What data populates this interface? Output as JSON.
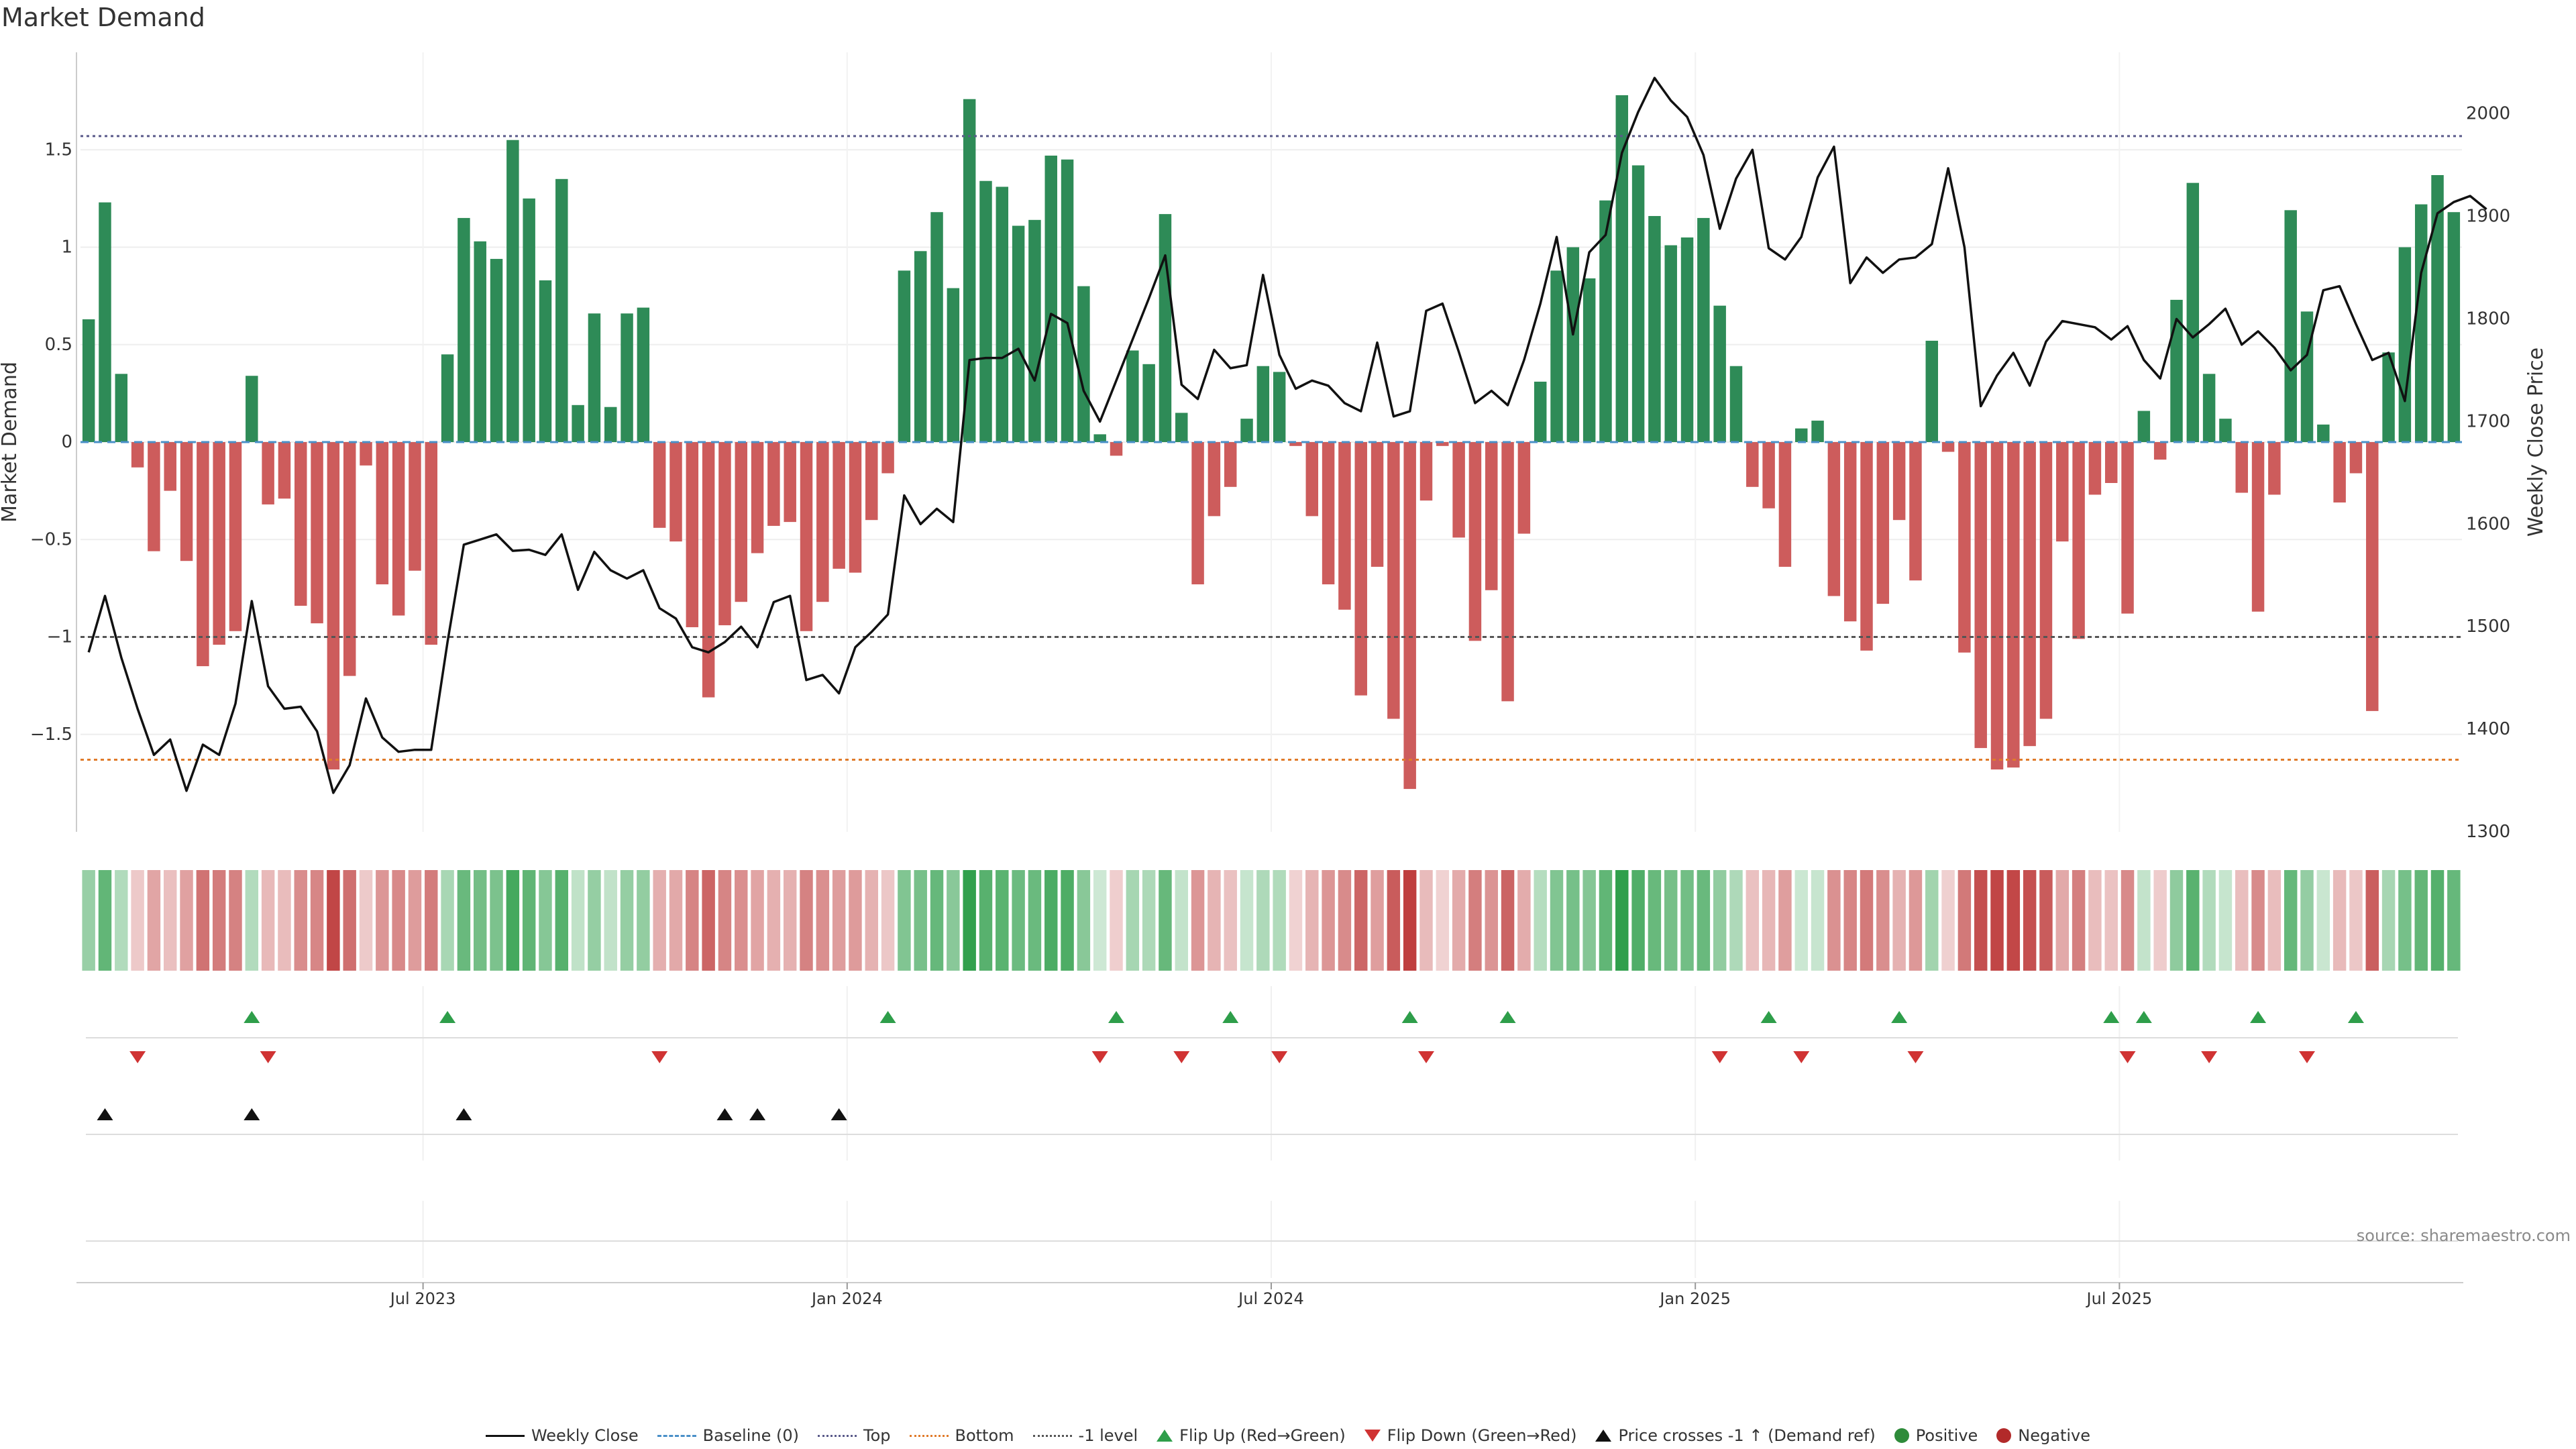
{
  "title": "Market Demand",
  "source": "source: sharemaestro.com",
  "colors": {
    "pos_bar": "#2e8b57",
    "neg_bar": "#cd5c5c",
    "price_line": "#111111",
    "baseline": "#4a90c8",
    "top": "#5a5a8a",
    "bottom": "#e07b2a",
    "minus1": "#555555",
    "flip_up": "#2e9e4a",
    "flip_down": "#d03333",
    "cross": "#111111",
    "positive": "#2e8b3a",
    "negative": "#b22a2a"
  },
  "legend": [
    {
      "label": "Weekly Close",
      "icon": "line-solid"
    },
    {
      "label": "Baseline (0)",
      "icon": "line-dashed"
    },
    {
      "label": "Top",
      "icon": "line-dotted"
    },
    {
      "label": "Bottom",
      "icon": "line-dotted-orange"
    },
    {
      "label": "-1 level",
      "icon": "line-dotted-gray"
    },
    {
      "label": "Flip Up (Red→Green)",
      "icon": "triangle-up-green"
    },
    {
      "label": "Flip Down (Green→Red)",
      "icon": "triangle-down-red"
    },
    {
      "label": "Price crosses -1 ↑ (Demand ref)",
      "icon": "triangle-up-black"
    },
    {
      "label": "Positive",
      "icon": "dot-green"
    },
    {
      "label": "Negative",
      "icon": "dot-red"
    }
  ],
  "chart_data": {
    "type": "bar",
    "title": "Market Demand",
    "xlabel": "",
    "ylabel": "Market Demand",
    "y2label": "Weekly Close Price",
    "ylim": [
      -2.0,
      2.0
    ],
    "y2lim": [
      1300,
      2060
    ],
    "yticks": [
      1.5,
      1,
      0.5,
      0,
      -0.5,
      -1,
      -1.5
    ],
    "ytick_labels": [
      "1.5",
      "1",
      "0.5",
      "0",
      "−0.5",
      "−1",
      "−1.5"
    ],
    "y2ticks": [
      2000,
      1900,
      1800,
      1700,
      1600,
      1500,
      1400,
      1300
    ],
    "y2tick_labels": [
      "2000",
      "1900",
      "1800",
      "1700",
      "1600",
      "1500",
      "1400",
      "1300"
    ],
    "xticks": [
      {
        "week": 21,
        "label": "Jul 2023"
      },
      {
        "week": 47,
        "label": "Jan 2024"
      },
      {
        "week": 73,
        "label": "Jul 2024"
      },
      {
        "week": 99,
        "label": "Jan 2025"
      },
      {
        "week": 125,
        "label": "Jul 2025"
      }
    ],
    "levels": {
      "top": 1.57,
      "bottom": -1.63,
      "minus_one": -1.0,
      "baseline": 0
    },
    "demand": [
      0.63,
      1.23,
      0.35,
      -0.13,
      -0.56,
      -0.25,
      -0.61,
      -1.15,
      -1.04,
      -0.97,
      0.34,
      -0.32,
      -0.29,
      -0.84,
      -0.93,
      -1.68,
      -1.2,
      -0.12,
      -0.73,
      -0.89,
      -0.66,
      -1.04,
      0.45,
      1.15,
      1.03,
      0.94,
      1.55,
      1.25,
      0.83,
      1.35,
      0.19,
      0.66,
      0.18,
      0.66,
      0.69,
      -0.44,
      -0.51,
      -0.95,
      -1.31,
      -0.94,
      -0.82,
      -0.57,
      -0.43,
      -0.41,
      -0.97,
      -0.82,
      -0.65,
      -0.67,
      -0.4,
      -0.16,
      0.88,
      0.98,
      1.18,
      0.79,
      1.76,
      1.34,
      1.31,
      1.11,
      1.14,
      1.47,
      1.45,
      0.8,
      0.04,
      -0.07,
      0.47,
      0.4,
      1.17,
      0.15,
      -0.73,
      -0.38,
      -0.23,
      0.12,
      0.39,
      0.36,
      -0.02,
      -0.38,
      -0.73,
      -0.86,
      -1.3,
      -0.64,
      -1.42,
      -1.78,
      -0.3,
      -0.02,
      -0.49,
      -1.02,
      -0.76,
      -1.33,
      -0.47,
      0.31,
      0.88,
      1.0,
      0.84,
      1.24,
      1.78,
      1.42,
      1.16,
      1.01,
      1.05,
      1.15,
      0.7,
      0.39,
      -0.23,
      -0.34,
      -0.64,
      0.07,
      0.11,
      -0.79,
      -0.92,
      -1.07,
      -0.83,
      -0.4,
      -0.71,
      0.52,
      -0.05,
      -1.08,
      -1.57,
      -1.68,
      -1.67,
      -1.56,
      -1.42,
      -0.51,
      -1.01,
      -0.27,
      -0.21,
      -0.88,
      0.16,
      -0.09,
      0.73,
      1.33,
      0.35,
      0.12,
      -0.26,
      -0.87,
      -0.27,
      1.19,
      0.67,
      0.09,
      -0.31,
      -0.16,
      -1.38,
      0.46,
      1.0,
      1.22,
      1.37,
      1.18
    ],
    "close": [
      1475,
      1530,
      1470,
      1420,
      1375,
      1390,
      1340,
      1385,
      1375,
      1425,
      1525,
      1442,
      1420,
      1422,
      1398,
      1338,
      1365,
      1430,
      1392,
      1378,
      1380,
      1380,
      1485,
      1580,
      1585,
      1590,
      1574,
      1575,
      1570,
      1590,
      1536,
      1573,
      1555,
      1547,
      1555,
      1518,
      1508,
      1480,
      1475,
      1485,
      1500,
      1480,
      1524,
      1530,
      1448,
      1453,
      1435,
      1480,
      1495,
      1512,
      1628,
      1600,
      1615,
      1602,
      1760,
      1762,
      1762,
      1771,
      1740,
      1805,
      1796,
      1730,
      1700,
      1740,
      1780,
      1820,
      1862,
      1736,
      1722,
      1770,
      1752,
      1755,
      1843,
      1765,
      1732,
      1740,
      1735,
      1718,
      1710,
      1777,
      1705,
      1710,
      1808,
      1815,
      1768,
      1718,
      1730,
      1716,
      1760,
      1815,
      1880,
      1785,
      1865,
      1882,
      1962,
      2002,
      2035,
      2013,
      1997,
      1960,
      1888,
      1937,
      1965,
      1869,
      1858,
      1880,
      1938,
      1968,
      1835,
      1860,
      1845,
      1858,
      1860,
      1873,
      1947,
      1870,
      1715,
      1745,
      1767,
      1735,
      1778,
      1798,
      1795,
      1792,
      1780,
      1793,
      1760,
      1742,
      1800,
      1782,
      1795,
      1810,
      1775,
      1788,
      1772,
      1750,
      1765,
      1828,
      1832,
      1795,
      1760,
      1767,
      1720,
      1845,
      1903,
      1914,
      1920,
      1907
    ],
    "flip_up_weeks": [
      10,
      22,
      49,
      63,
      70,
      81,
      87,
      103,
      111,
      124,
      126,
      133,
      139
    ],
    "flip_down_weeks": [
      3,
      11,
      35,
      62,
      67,
      73,
      82,
      100,
      105,
      112,
      125,
      130,
      136
    ],
    "price_cross_weeks": [
      1,
      10,
      23,
      39,
      41,
      46
    ]
  }
}
